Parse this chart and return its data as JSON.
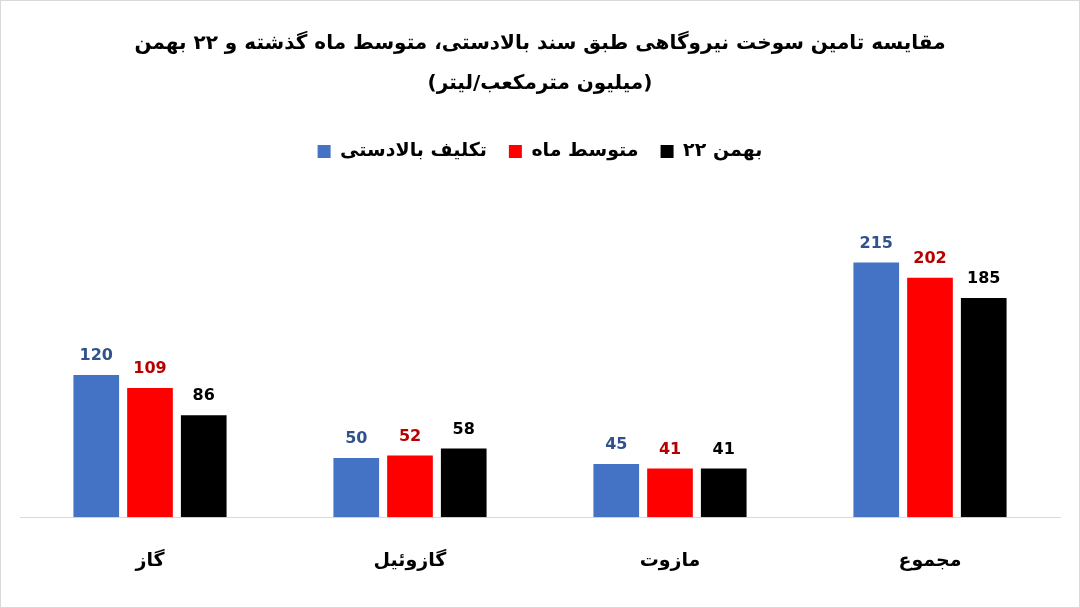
{
  "chart_data": {
    "type": "bar",
    "title": "مقایسه تامین سوخت نیروگاهی طبق سند بالادستی، متوسط ماه گذشته و ۲۲ بهمن",
    "subtitle": "(میلیون مترمکعب/لیتر)",
    "categories": [
      "گاز",
      "گازوئیل",
      "مازوت",
      "مجموع"
    ],
    "series": [
      {
        "name": "تکلیف بالادستی",
        "color": "#4472c4",
        "values": [
          120,
          50,
          45,
          215
        ]
      },
      {
        "name": "متوسط ماه",
        "color": "#ff0000",
        "values": [
          109,
          52,
          41,
          202
        ]
      },
      {
        "name": "۲۲ بهمن",
        "color": "#000000",
        "values": [
          86,
          58,
          41,
          185
        ]
      }
    ],
    "data_labels": true,
    "legend": "top",
    "grid": false,
    "tick_labels": "x"
  }
}
